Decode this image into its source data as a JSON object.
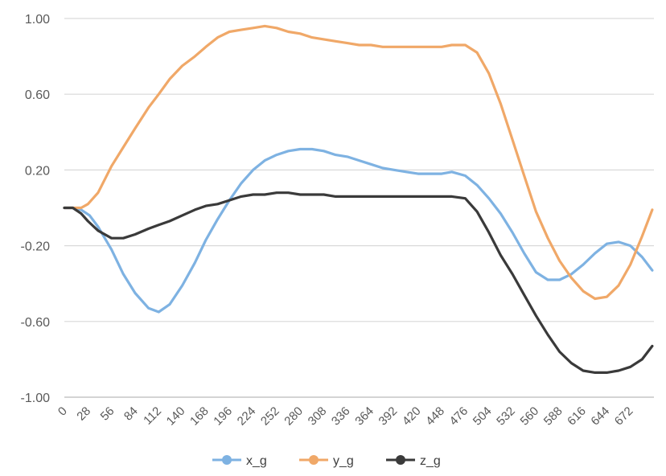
{
  "chart_data": {
    "type": "line",
    "title": "",
    "xlabel": "",
    "ylabel": "",
    "xlim": [
      0,
      700
    ],
    "ylim": [
      -1.0,
      1.0
    ],
    "yticks": [
      1.0,
      0.6,
      0.2,
      -0.2,
      -0.6,
      -1.0
    ],
    "ytick_labels": [
      "1.00",
      "0.60",
      "0.20",
      "-0.20",
      "-0.60",
      "-1.00"
    ],
    "xticks": [
      0,
      28,
      56,
      84,
      112,
      140,
      168,
      196,
      224,
      252,
      280,
      308,
      336,
      364,
      392,
      420,
      448,
      476,
      504,
      532,
      560,
      588,
      616,
      644,
      672
    ],
    "xtick_labels": [
      "0",
      "28",
      "56",
      "84",
      "112",
      "140",
      "168",
      "196",
      "224",
      "252",
      "280",
      "308",
      "336",
      "364",
      "392",
      "420",
      "448",
      "476",
      "504",
      "532",
      "560",
      "588",
      "616",
      "644",
      "672"
    ],
    "grid": "horizontal",
    "legend_position": "bottom",
    "series": [
      {
        "name": "x_g",
        "color": "#7eb2e2",
        "x": [
          0,
          10,
          20,
          30,
          40,
          56,
          70,
          84,
          100,
          112,
          125,
          140,
          155,
          168,
          182,
          196,
          210,
          224,
          238,
          252,
          266,
          280,
          294,
          308,
          322,
          336,
          350,
          364,
          378,
          392,
          406,
          420,
          434,
          448,
          460,
          476,
          490,
          504,
          518,
          532,
          546,
          560,
          574,
          588,
          602,
          616,
          630,
          644,
          658,
          672,
          686,
          698
        ],
        "y": [
          0.0,
          0.0,
          -0.01,
          -0.04,
          -0.1,
          -0.22,
          -0.35,
          -0.45,
          -0.53,
          -0.55,
          -0.51,
          -0.41,
          -0.29,
          -0.17,
          -0.06,
          0.04,
          0.13,
          0.2,
          0.25,
          0.28,
          0.3,
          0.31,
          0.31,
          0.3,
          0.28,
          0.27,
          0.25,
          0.23,
          0.21,
          0.2,
          0.19,
          0.18,
          0.18,
          0.18,
          0.19,
          0.17,
          0.12,
          0.05,
          -0.03,
          -0.13,
          -0.24,
          -0.34,
          -0.38,
          -0.38,
          -0.35,
          -0.3,
          -0.24,
          -0.19,
          -0.18,
          -0.2,
          -0.26,
          -0.33
        ]
      },
      {
        "name": "y_g",
        "color": "#f0a868",
        "x": [
          0,
          10,
          20,
          28,
          40,
          56,
          70,
          84,
          100,
          112,
          125,
          140,
          155,
          168,
          182,
          196,
          210,
          224,
          238,
          252,
          266,
          280,
          294,
          308,
          322,
          336,
          350,
          364,
          378,
          392,
          406,
          420,
          434,
          448,
          460,
          476,
          490,
          504,
          518,
          532,
          546,
          560,
          574,
          588,
          602,
          616,
          630,
          644,
          658,
          672,
          686,
          698
        ],
        "y": [
          0.0,
          0.0,
          0.0,
          0.02,
          0.08,
          0.22,
          0.32,
          0.42,
          0.53,
          0.6,
          0.68,
          0.75,
          0.8,
          0.85,
          0.9,
          0.93,
          0.94,
          0.95,
          0.96,
          0.95,
          0.93,
          0.92,
          0.9,
          0.89,
          0.88,
          0.87,
          0.86,
          0.86,
          0.85,
          0.85,
          0.85,
          0.85,
          0.85,
          0.85,
          0.86,
          0.86,
          0.82,
          0.71,
          0.55,
          0.36,
          0.17,
          -0.02,
          -0.16,
          -0.28,
          -0.37,
          -0.44,
          -0.48,
          -0.47,
          -0.41,
          -0.3,
          -0.15,
          -0.01
        ]
      },
      {
        "name": "z_g",
        "color": "#3a3a3a",
        "x": [
          0,
          10,
          20,
          28,
          40,
          56,
          70,
          84,
          100,
          112,
          125,
          140,
          155,
          168,
          182,
          196,
          210,
          224,
          238,
          252,
          266,
          280,
          294,
          308,
          322,
          336,
          350,
          364,
          378,
          392,
          406,
          420,
          434,
          448,
          460,
          476,
          490,
          504,
          518,
          532,
          546,
          560,
          574,
          588,
          602,
          616,
          630,
          644,
          658,
          672,
          686,
          698
        ],
        "y": [
          0.0,
          0.0,
          -0.03,
          -0.07,
          -0.12,
          -0.16,
          -0.16,
          -0.14,
          -0.11,
          -0.09,
          -0.07,
          -0.04,
          -0.01,
          0.01,
          0.02,
          0.04,
          0.06,
          0.07,
          0.07,
          0.08,
          0.08,
          0.07,
          0.07,
          0.07,
          0.06,
          0.06,
          0.06,
          0.06,
          0.06,
          0.06,
          0.06,
          0.06,
          0.06,
          0.06,
          0.06,
          0.05,
          -0.02,
          -0.13,
          -0.25,
          -0.35,
          -0.46,
          -0.57,
          -0.67,
          -0.76,
          -0.82,
          -0.86,
          -0.87,
          -0.87,
          -0.86,
          -0.84,
          -0.8,
          -0.73
        ]
      }
    ]
  }
}
